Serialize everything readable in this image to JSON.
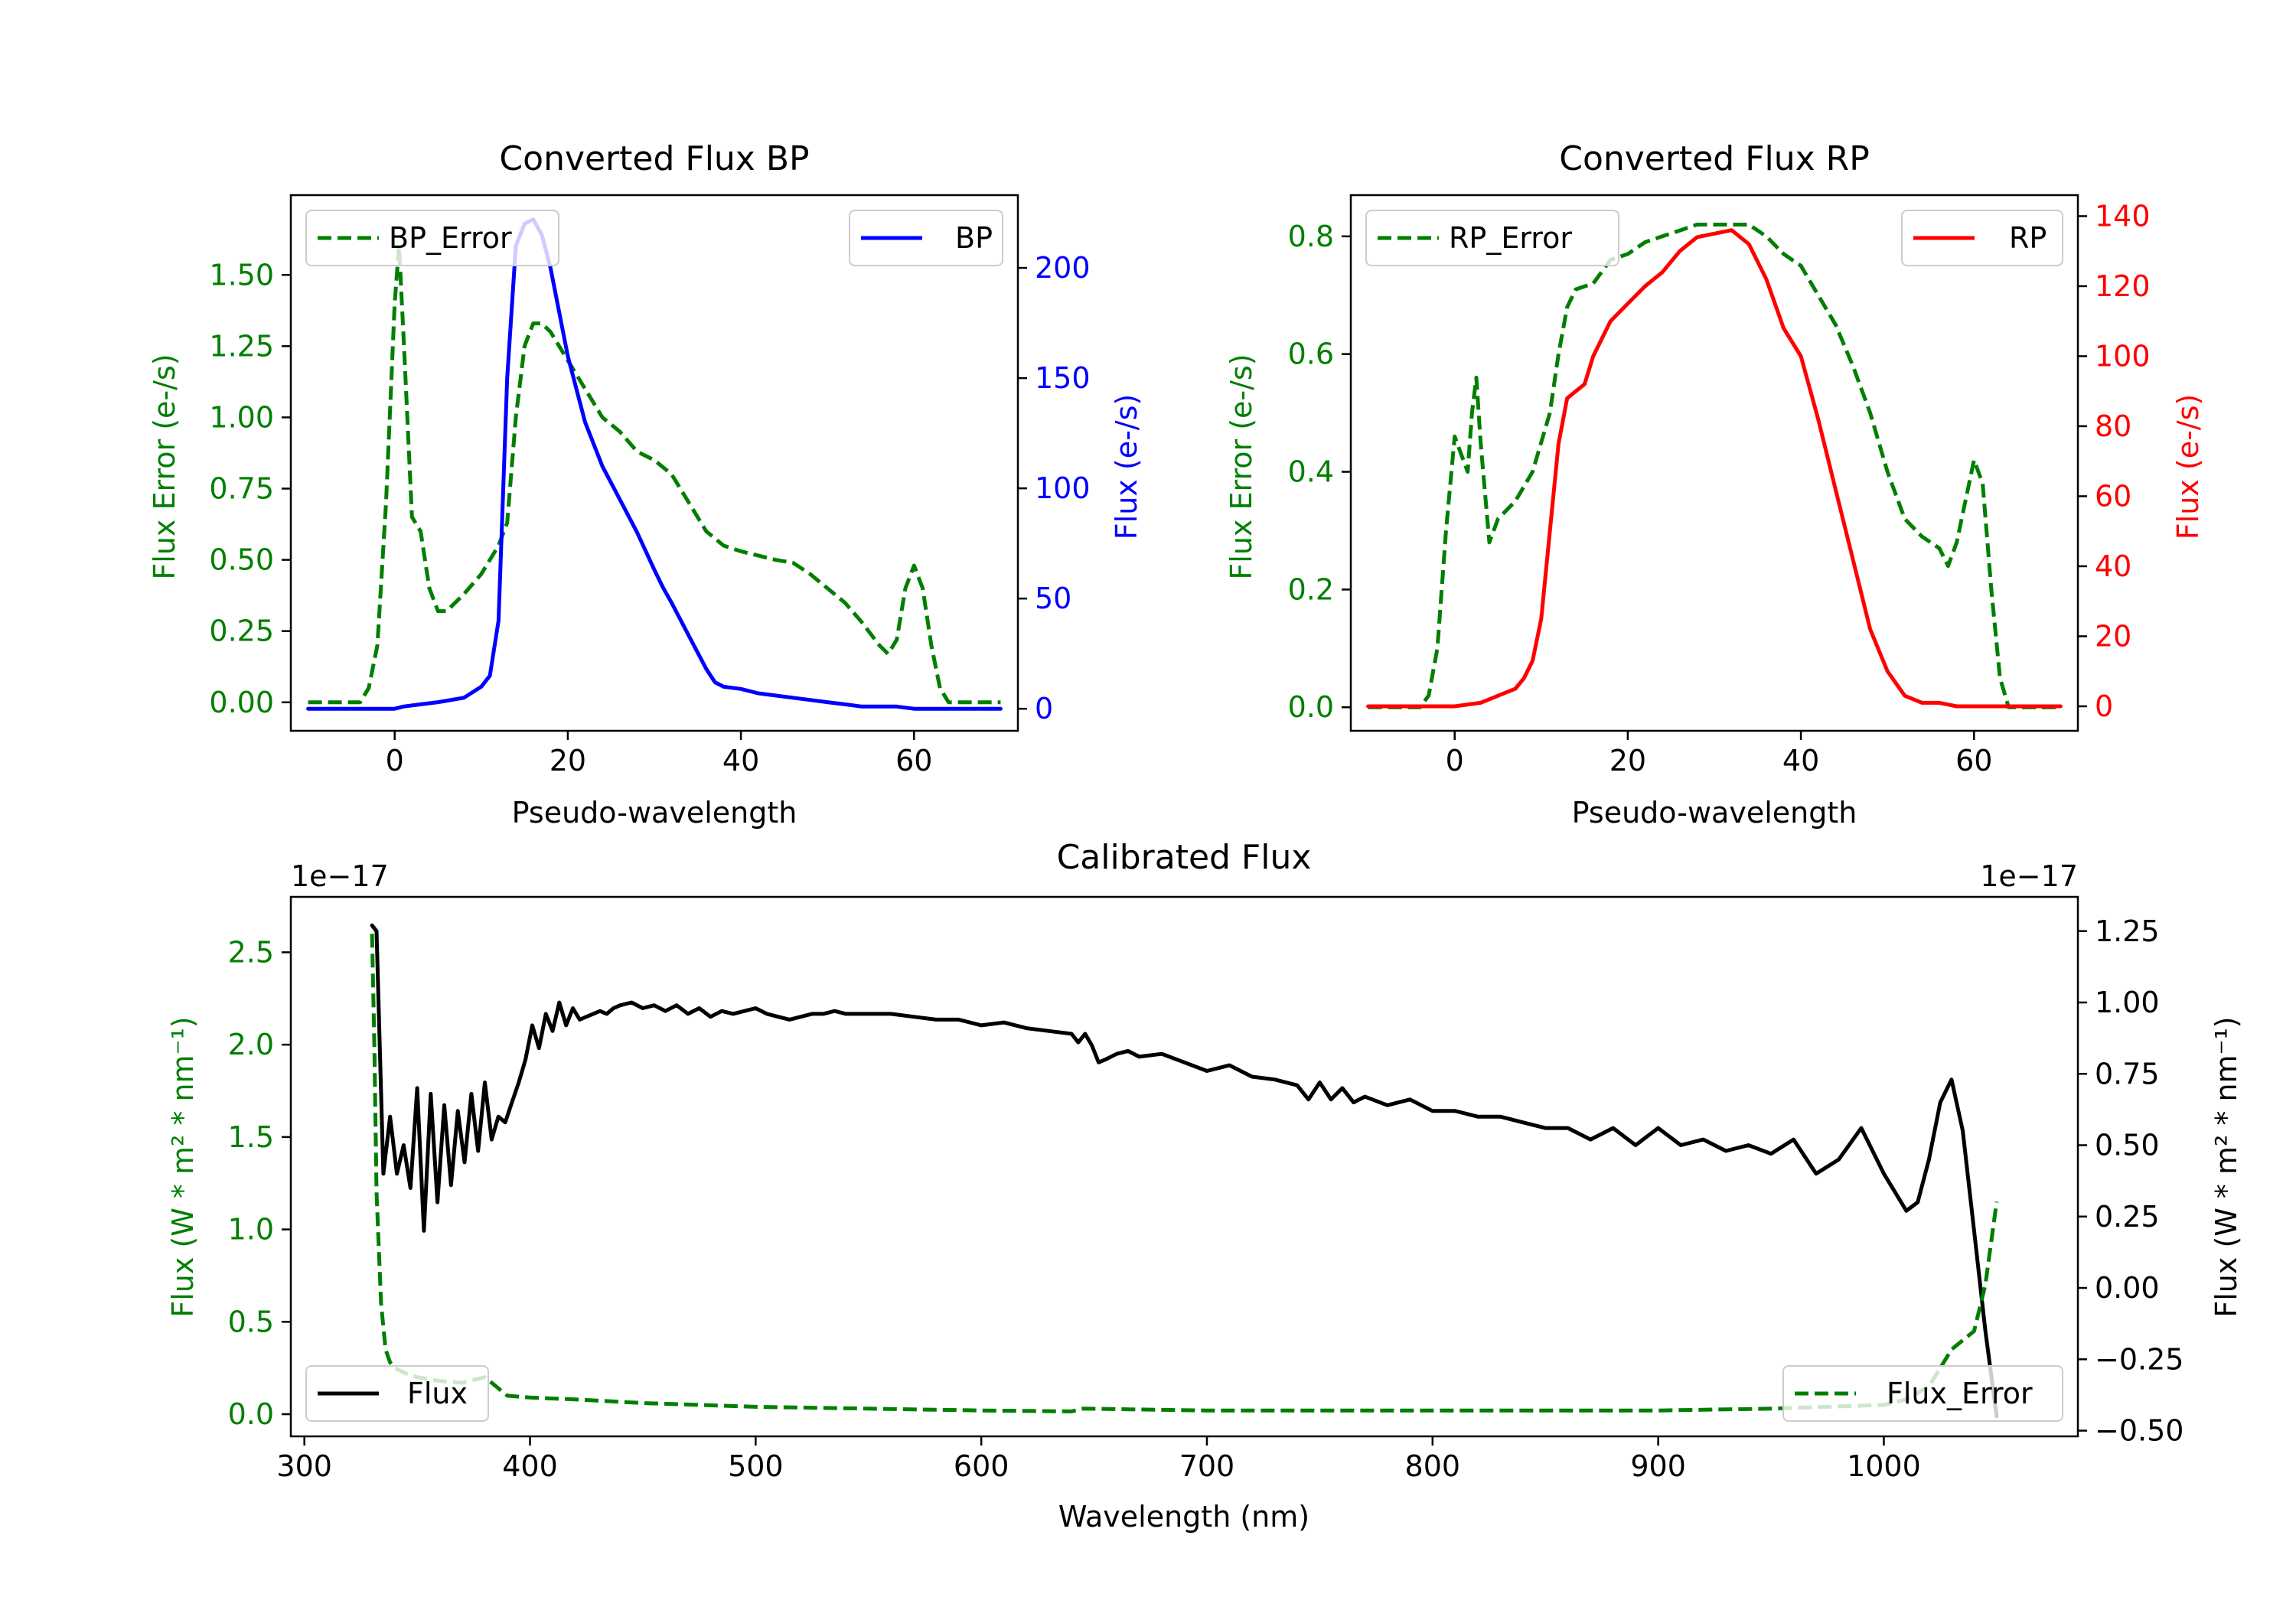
{
  "colors": {
    "error": "#007f00",
    "bp": "#0000ff",
    "rp": "#ff0000",
    "flux": "#000000",
    "axis": "#000000"
  },
  "chart_data": [
    {
      "id": "bp",
      "type": "line",
      "title": "Converted Flux BP",
      "xlabel": "Pseudo-wavelength",
      "ylabel_left": "Flux Error (e-/s)",
      "ylabel_right": "Flux (e-/s)",
      "xlim": [
        -12,
        72
      ],
      "ylim_left": [
        -0.1,
        1.78
      ],
      "ylim_right": [
        -10,
        233
      ],
      "xticks": [
        0,
        20,
        40,
        60
      ],
      "xtick_labels": [
        "0",
        "20",
        "40",
        "60"
      ],
      "yticks_left": [
        0.0,
        0.25,
        0.5,
        0.75,
        1.0,
        1.25,
        1.5
      ],
      "ytick_labels_left": [
        "0.00",
        "0.25",
        "0.50",
        "0.75",
        "1.00",
        "1.25",
        "1.50"
      ],
      "yticks_right": [
        0,
        50,
        100,
        150,
        200
      ],
      "ytick_labels_right": [
        "0",
        "50",
        "100",
        "150",
        "200"
      ],
      "legend_left": "BP_Error",
      "legend_right": "BP",
      "series": [
        {
          "name": "BP_Error",
          "axis": "left",
          "style": "dashed",
          "color_key": "error",
          "x": [
            -10,
            -4,
            -3,
            -2,
            -1,
            0,
            0.5,
            1,
            2,
            3,
            4,
            5,
            6,
            8,
            10,
            12,
            13,
            14,
            15,
            16,
            17,
            18,
            20,
            22,
            24,
            26,
            28,
            30,
            32,
            34,
            36,
            38,
            40,
            44,
            46,
            48,
            50,
            52,
            54,
            56,
            57,
            58,
            59,
            60,
            61,
            62,
            63,
            64,
            66,
            70
          ],
          "y": [
            0.0,
            0.0,
            0.05,
            0.2,
            0.7,
            1.4,
            1.6,
            1.3,
            0.65,
            0.6,
            0.4,
            0.32,
            0.32,
            0.38,
            0.45,
            0.55,
            0.63,
            1.0,
            1.25,
            1.33,
            1.33,
            1.3,
            1.2,
            1.1,
            1.0,
            0.95,
            0.88,
            0.85,
            0.8,
            0.7,
            0.6,
            0.55,
            0.53,
            0.5,
            0.49,
            0.45,
            0.4,
            0.35,
            0.28,
            0.2,
            0.17,
            0.22,
            0.4,
            0.48,
            0.4,
            0.2,
            0.05,
            0.0,
            0.0,
            0.0
          ]
        },
        {
          "name": "BP",
          "axis": "right",
          "style": "solid",
          "color_key": "bp",
          "x": [
            -10,
            0,
            1,
            3,
            5,
            8,
            10,
            11,
            12,
            13,
            14,
            15,
            16,
            17,
            18,
            19,
            20,
            21,
            22,
            24,
            26,
            28,
            30,
            31,
            32,
            34,
            36,
            37,
            38,
            40,
            42,
            44,
            46,
            48,
            50,
            52,
            54,
            56,
            58,
            60,
            64,
            70
          ],
          "y": [
            0,
            0,
            1,
            2,
            3,
            5,
            10,
            15,
            40,
            150,
            210,
            220,
            222,
            215,
            200,
            180,
            160,
            145,
            130,
            110,
            95,
            80,
            63,
            55,
            48,
            33,
            18,
            12,
            10,
            9,
            7,
            6,
            5,
            4,
            3,
            2,
            1,
            1,
            1,
            0,
            0,
            0
          ]
        }
      ]
    },
    {
      "id": "rp",
      "type": "line",
      "title": "Converted Flux RP",
      "xlabel": "Pseudo-wavelength",
      "ylabel_left": "Flux Error (e-/s)",
      "ylabel_right": "Flux (e-/s)",
      "xlim": [
        -12,
        72
      ],
      "ylim_left": [
        -0.04,
        0.87
      ],
      "ylim_right": [
        -7,
        146
      ],
      "xticks": [
        0,
        20,
        40,
        60
      ],
      "xtick_labels": [
        "0",
        "20",
        "40",
        "60"
      ],
      "yticks_left": [
        0.0,
        0.2,
        0.4,
        0.6,
        0.8
      ],
      "ytick_labels_left": [
        "0.0",
        "0.2",
        "0.4",
        "0.6",
        "0.8"
      ],
      "yticks_right": [
        0,
        20,
        40,
        60,
        80,
        100,
        120,
        140
      ],
      "ytick_labels_right": [
        "0",
        "20",
        "40",
        "60",
        "80",
        "100",
        "120",
        "140"
      ],
      "legend_left": "RP_Error",
      "legend_right": "RP",
      "series": [
        {
          "name": "RP_Error",
          "axis": "right_no",
          "axis_side": "left",
          "style": "dashed",
          "color_key": "error",
          "x": [
            -10,
            -4,
            -3,
            -2,
            -1,
            0,
            1,
            1.5,
            2,
            2.5,
            3,
            4,
            5,
            7,
            9,
            11,
            12,
            13,
            14,
            16,
            18,
            20,
            22,
            24,
            26,
            28,
            30,
            32,
            34,
            36,
            38,
            40,
            42,
            44,
            46,
            48,
            50,
            52,
            54,
            56,
            57,
            58,
            59,
            60,
            61,
            62,
            63,
            64,
            66,
            70
          ],
          "y": [
            0.0,
            0.0,
            0.02,
            0.1,
            0.3,
            0.46,
            0.42,
            0.4,
            0.5,
            0.56,
            0.45,
            0.28,
            0.32,
            0.35,
            0.4,
            0.5,
            0.6,
            0.68,
            0.71,
            0.72,
            0.76,
            0.77,
            0.79,
            0.8,
            0.81,
            0.82,
            0.82,
            0.82,
            0.82,
            0.8,
            0.77,
            0.75,
            0.7,
            0.65,
            0.58,
            0.5,
            0.4,
            0.32,
            0.29,
            0.27,
            0.24,
            0.28,
            0.35,
            0.42,
            0.38,
            0.2,
            0.05,
            0.0,
            0.0,
            0.0
          ]
        },
        {
          "name": "RP",
          "axis": "right",
          "style": "solid",
          "color_key": "rp",
          "x": [
            -10,
            -2,
            0,
            3,
            5,
            7,
            8,
            9,
            10,
            11,
            12,
            13,
            14,
            15,
            16,
            18,
            20,
            22,
            24,
            26,
            28,
            30,
            32,
            34,
            36,
            38,
            40,
            42,
            44,
            46,
            48,
            50,
            52,
            54,
            56,
            58,
            60,
            64,
            70
          ],
          "y": [
            0,
            0,
            0,
            1,
            3,
            5,
            8,
            13,
            25,
            50,
            75,
            88,
            90,
            92,
            100,
            110,
            115,
            120,
            124,
            130,
            134,
            135,
            136,
            132,
            122,
            108,
            100,
            82,
            62,
            42,
            22,
            10,
            3,
            1,
            1,
            0,
            0,
            0,
            0
          ]
        }
      ]
    },
    {
      "id": "cal",
      "type": "line",
      "title": "Calibrated Flux",
      "xlabel": "Wavelength (nm)",
      "ylabel_left": "Flux (W * m² * nm⁻¹)",
      "ylabel_right": "Flux (W * m² * nm⁻¹)",
      "offset_left": "1e−17",
      "offset_right": "1e−17",
      "xlim": [
        294,
        1086
      ],
      "ylim_left": [
        -0.12,
        2.8
      ],
      "ylim_right": [
        -0.52,
        1.37
      ],
      "xticks": [
        300,
        400,
        500,
        600,
        700,
        800,
        900,
        1000
      ],
      "xtick_labels": [
        "300",
        "400",
        "500",
        "600",
        "700",
        "800",
        "900",
        "1000"
      ],
      "yticks_left": [
        0.0,
        0.5,
        1.0,
        1.5,
        2.0,
        2.5
      ],
      "ytick_labels_left": [
        "0.0",
        "0.5",
        "1.0",
        "1.5",
        "2.0",
        "2.5"
      ],
      "yticks_right": [
        -0.5,
        -0.25,
        0.0,
        0.25,
        0.5,
        0.75,
        1.0,
        1.25
      ],
      "ytick_labels_right": [
        "−0.50",
        "−0.25",
        "0.00",
        "0.25",
        "0.50",
        "0.75",
        "1.00",
        "1.25"
      ],
      "legend_left": "Flux",
      "legend_right": "Flux_Error",
      "series": [
        {
          "name": "Flux",
          "axis": "right",
          "style": "solid",
          "color_key": "flux",
          "x": [
            330,
            332,
            335,
            338,
            341,
            344,
            347,
            350,
            353,
            356,
            359,
            362,
            365,
            368,
            371,
            374,
            377,
            380,
            383,
            386,
            389,
            392,
            395,
            398,
            401,
            404,
            407,
            410,
            413,
            416,
            419,
            422,
            425,
            428,
            431,
            434,
            437,
            440,
            445,
            450,
            455,
            460,
            465,
            470,
            475,
            480,
            485,
            490,
            495,
            500,
            505,
            510,
            515,
            520,
            525,
            530,
            535,
            540,
            550,
            560,
            570,
            580,
            590,
            600,
            610,
            620,
            630,
            640,
            643,
            646,
            649,
            652,
            655,
            660,
            665,
            670,
            680,
            690,
            700,
            710,
            720,
            730,
            740,
            745,
            750,
            755,
            760,
            765,
            770,
            780,
            790,
            800,
            810,
            820,
            830,
            840,
            850,
            860,
            870,
            880,
            890,
            900,
            910,
            920,
            930,
            940,
            950,
            960,
            970,
            980,
            990,
            1000,
            1010,
            1015,
            1020,
            1025,
            1030,
            1035,
            1040,
            1045,
            1050
          ],
          "y": [
            1.27,
            1.25,
            0.4,
            0.6,
            0.4,
            0.5,
            0.35,
            0.7,
            0.2,
            0.68,
            0.3,
            0.64,
            0.36,
            0.62,
            0.44,
            0.68,
            0.48,
            0.72,
            0.52,
            0.6,
            0.58,
            0.65,
            0.72,
            0.8,
            0.92,
            0.84,
            0.96,
            0.9,
            1.0,
            0.92,
            0.98,
            0.94,
            0.95,
            0.96,
            0.97,
            0.96,
            0.98,
            0.99,
            1.0,
            0.98,
            0.99,
            0.97,
            0.99,
            0.96,
            0.98,
            0.95,
            0.97,
            0.96,
            0.97,
            0.98,
            0.96,
            0.95,
            0.94,
            0.95,
            0.96,
            0.96,
            0.97,
            0.96,
            0.96,
            0.96,
            0.95,
            0.94,
            0.94,
            0.92,
            0.93,
            0.91,
            0.9,
            0.89,
            0.86,
            0.89,
            0.85,
            0.79,
            0.8,
            0.82,
            0.83,
            0.81,
            0.82,
            0.79,
            0.76,
            0.78,
            0.74,
            0.73,
            0.71,
            0.66,
            0.72,
            0.66,
            0.7,
            0.65,
            0.67,
            0.64,
            0.66,
            0.62,
            0.62,
            0.6,
            0.6,
            0.58,
            0.56,
            0.56,
            0.52,
            0.56,
            0.5,
            0.56,
            0.5,
            0.52,
            0.48,
            0.5,
            0.47,
            0.52,
            0.4,
            0.45,
            0.56,
            0.4,
            0.27,
            0.3,
            0.45,
            0.65,
            0.73,
            0.55,
            0.2,
            -0.15,
            -0.45
          ]
        },
        {
          "name": "Flux_Error",
          "axis": "left",
          "style": "dashed",
          "color_key": "error",
          "x": [
            330,
            331,
            332,
            334,
            336,
            338,
            340,
            345,
            350,
            360,
            370,
            380,
            385,
            390,
            400,
            420,
            450,
            500,
            550,
            600,
            640,
            645,
            700,
            800,
            900,
            950,
            1000,
            1010,
            1020,
            1025,
            1030,
            1035,
            1040,
            1045,
            1050
          ],
          "y": [
            2.6,
            2.0,
            1.2,
            0.6,
            0.35,
            0.28,
            0.25,
            0.22,
            0.2,
            0.18,
            0.17,
            0.2,
            0.15,
            0.1,
            0.09,
            0.08,
            0.06,
            0.04,
            0.03,
            0.02,
            0.015,
            0.03,
            0.02,
            0.02,
            0.02,
            0.03,
            0.05,
            0.08,
            0.15,
            0.25,
            0.35,
            0.4,
            0.45,
            0.7,
            1.15
          ]
        }
      ]
    }
  ]
}
